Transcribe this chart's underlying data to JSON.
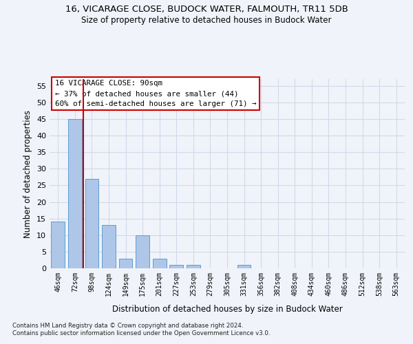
{
  "title": "16, VICARAGE CLOSE, BUDOCK WATER, FALMOUTH, TR11 5DB",
  "subtitle": "Size of property relative to detached houses in Budock Water",
  "xlabel": "Distribution of detached houses by size in Budock Water",
  "ylabel": "Number of detached properties",
  "bar_color": "#aec6e8",
  "bar_edge_color": "#5a9fd4",
  "grid_color": "#d0d8e8",
  "background_color": "#f0f4fa",
  "annotation_box_color": "#cc0000",
  "vline_color": "#cc0000",
  "categories": [
    "46sqm",
    "72sqm",
    "98sqm",
    "124sqm",
    "149sqm",
    "175sqm",
    "201sqm",
    "227sqm",
    "253sqm",
    "279sqm",
    "305sqm",
    "331sqm",
    "356sqm",
    "382sqm",
    "408sqm",
    "434sqm",
    "460sqm",
    "486sqm",
    "512sqm",
    "538sqm",
    "563sqm"
  ],
  "values": [
    14,
    45,
    27,
    13,
    3,
    10,
    3,
    1,
    1,
    0,
    0,
    1,
    0,
    0,
    0,
    0,
    0,
    0,
    0,
    0,
    0
  ],
  "ylim": [
    0,
    57
  ],
  "yticks": [
    0,
    5,
    10,
    15,
    20,
    25,
    30,
    35,
    40,
    45,
    50,
    55
  ],
  "vline_x_index": 2,
  "annotation_text": "16 VICARAGE CLOSE: 90sqm\n← 37% of detached houses are smaller (44)\n60% of semi-detached houses are larger (71) →",
  "footnote1": "Contains HM Land Registry data © Crown copyright and database right 2024.",
  "footnote2": "Contains public sector information licensed under the Open Government Licence v3.0."
}
